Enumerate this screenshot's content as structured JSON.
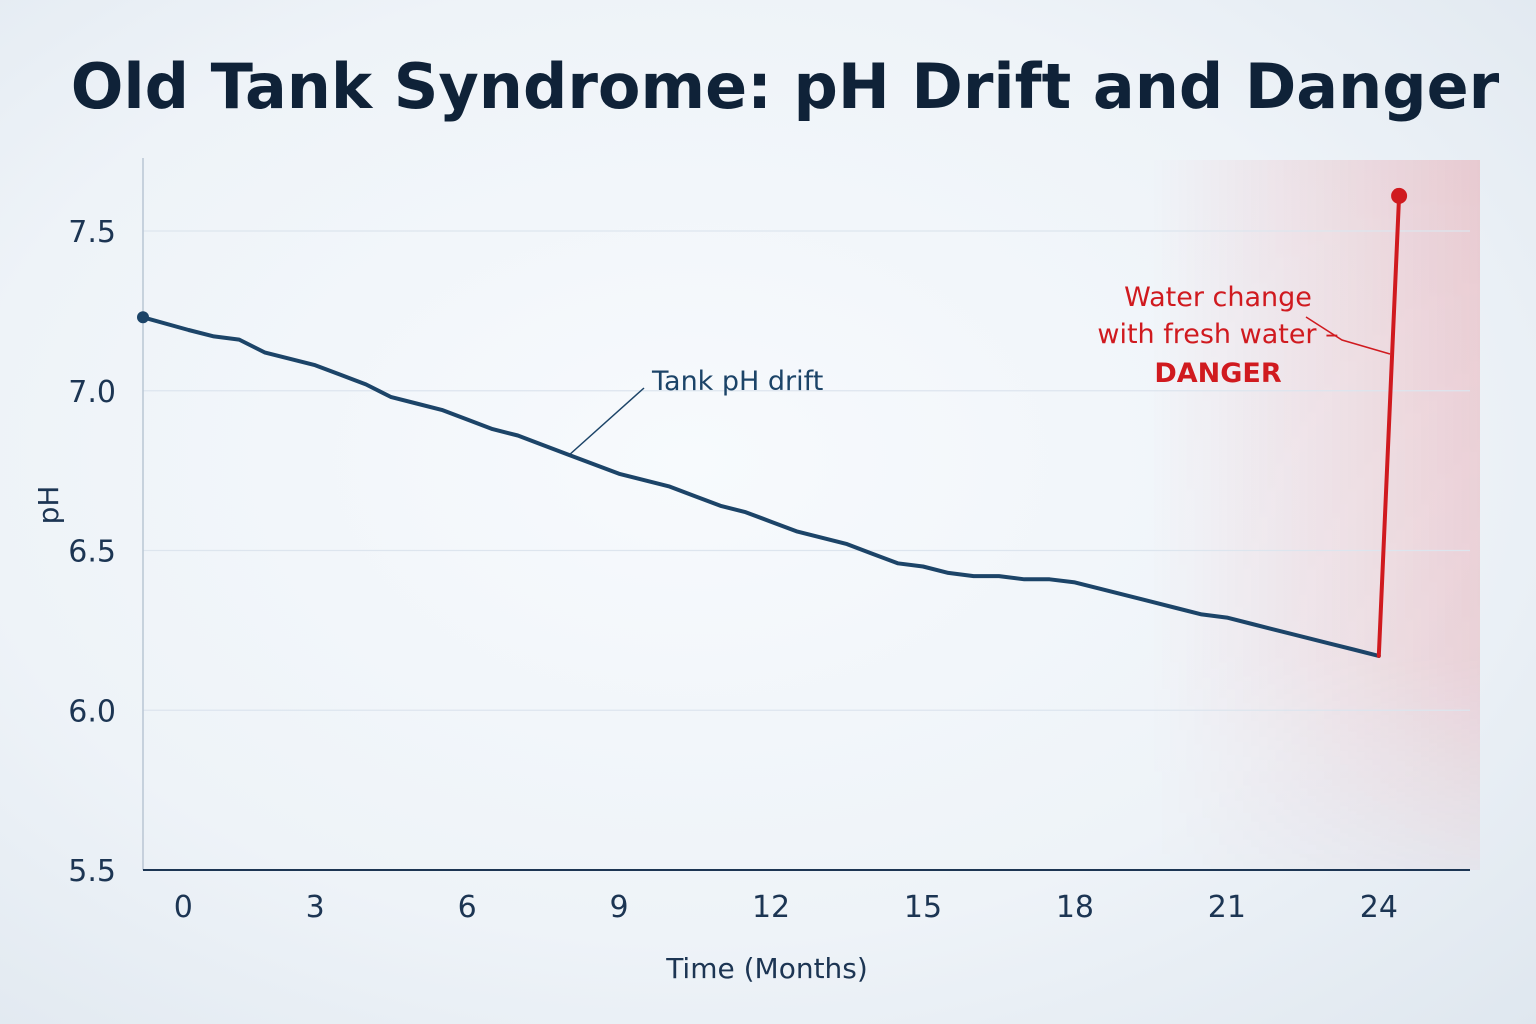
{
  "chart_data": {
    "type": "line",
    "title": "Old Tank Syndrome: pH Drift and Danger",
    "xlabel": "Time (Months)",
    "ylabel": "pH",
    "x_ticks": [
      "0",
      "3",
      "6",
      "9",
      "12",
      "15",
      "18",
      "21",
      "24"
    ],
    "y_ticks": [
      "5.5",
      "6.0",
      "6.5",
      "7.0",
      "7.5"
    ],
    "xlim": [
      -0.4,
      25.8
    ],
    "ylim": [
      5.5,
      7.7
    ],
    "grid": "horizontal",
    "series": [
      {
        "x": [
          -0.4,
          0.5,
          1.0,
          1.5,
          2.0,
          2.5,
          3.0,
          3.5,
          4.0,
          4.5,
          5.0,
          5.5,
          6.0,
          6.5,
          7.0,
          7.5,
          8.0,
          8.5,
          9.0,
          9.5,
          10.0,
          10.5,
          11.0,
          11.5,
          12.0,
          12.5,
          13.0,
          13.5,
          14.0,
          14.5,
          15.0,
          15.5,
          16.0,
          16.5,
          17.0,
          17.5,
          18.0,
          18.5,
          19.0,
          19.5,
          20.0,
          20.5,
          21.0,
          21.5,
          22.0,
          22.5,
          23.0,
          23.5,
          24.0
        ],
        "y": [
          7.23,
          7.19,
          7.17,
          7.16,
          7.12,
          7.1,
          7.08,
          7.05,
          7.02,
          6.98,
          6.96,
          6.94,
          6.91,
          6.88,
          6.86,
          6.83,
          6.8,
          6.77,
          6.74,
          6.72,
          6.7,
          6.67,
          6.64,
          6.62,
          6.59,
          6.56,
          6.54,
          6.52,
          6.49,
          6.46,
          6.45,
          6.43,
          6.42,
          6.42,
          6.41,
          6.41,
          6.4,
          6.38,
          6.36,
          6.34,
          6.32,
          6.3,
          6.29,
          6.27,
          6.25,
          6.23,
          6.21,
          6.19,
          6.17
        ],
        "color": "#1c4468"
      },
      {
        "x": [
          24.0,
          24.4
        ],
        "y": [
          6.17,
          7.61
        ],
        "color": "#d01a1f"
      }
    ],
    "annotations": [
      {
        "text": "Tank pH drift",
        "color": "#1c4468"
      },
      {
        "lines": [
          "Water change",
          "with fresh water –"
        ],
        "emphasis": "DANGER",
        "color": "#d01a1f"
      }
    ],
    "danger_zone_color": "#e8101a"
  }
}
